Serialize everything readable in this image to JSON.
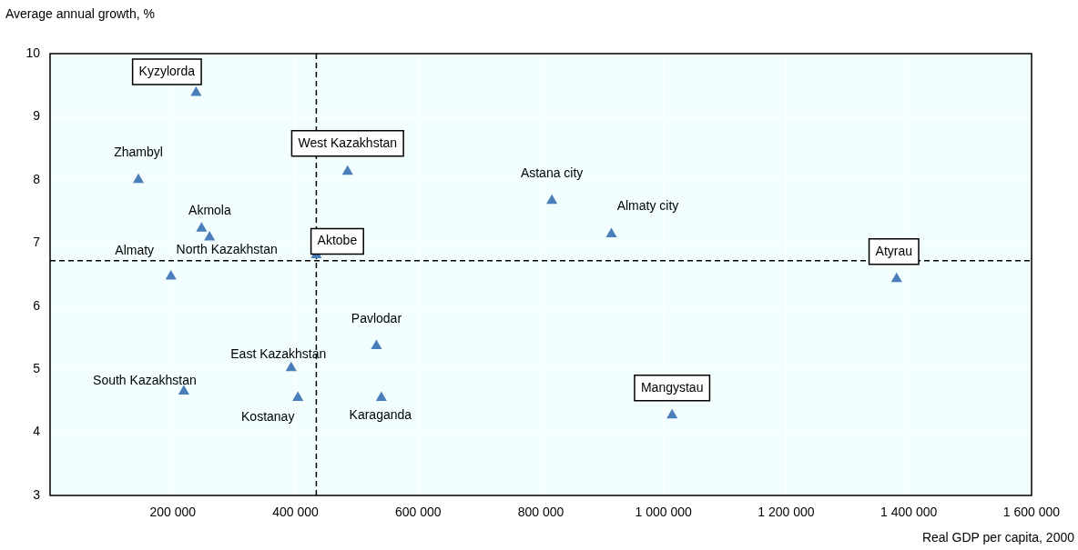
{
  "chart_data": {
    "type": "scatter",
    "xlabel": "Real GDP per capita, 2000",
    "ylabel": "Average annual growth, %",
    "x": [
      238000,
      144000,
      247000,
      260000,
      197000,
      434000,
      485000,
      532000,
      393000,
      218000,
      404000,
      540000,
      818000,
      915000,
      1380000,
      1014000
    ],
    "values": [
      9.38,
      8.0,
      7.23,
      7.09,
      6.47,
      6.81,
      8.13,
      5.37,
      5.02,
      4.65,
      4.55,
      4.55,
      7.67,
      7.14,
      6.43,
      4.27
    ],
    "color": "#4a7ebb",
    "marker": "triangle",
    "xlim": [
      0,
      1600000
    ],
    "xticks": [
      {
        "value": 200000,
        "label": "200 000"
      },
      {
        "value": 400000,
        "label": "400 000"
      },
      {
        "value": 600000,
        "label": "600 000"
      },
      {
        "value": 800000,
        "label": "800 000"
      },
      {
        "value": 1000000,
        "label": "1 000 000"
      },
      {
        "value": 1200000,
        "label": "1 200 000"
      },
      {
        "value": 1400000,
        "label": "1 400 000"
      },
      {
        "value": 1600000,
        "label": "1 600 000"
      }
    ],
    "ylim": [
      3,
      10
    ],
    "yticks": [
      3,
      4,
      5,
      6,
      7,
      8,
      9,
      10
    ],
    "grid": true,
    "ref_lines": [
      {
        "axis": "x",
        "value": 434000,
        "line_style": "dashed",
        "color": "#000000"
      },
      {
        "axis": "y",
        "value": 6.72,
        "line_style": "dashed",
        "color": "#000000"
      }
    ],
    "annotations": [
      {
        "text": "Kyzylorda",
        "x": 238000,
        "y": 9.38
      },
      {
        "text": "Zhambyl",
        "x": 144000,
        "y": 8.0
      },
      {
        "text": "Akmola",
        "x": 247000,
        "y": 7.23
      },
      {
        "text": "North Kazakhstan",
        "x": 260000,
        "y": 7.09
      },
      {
        "text": "Almaty",
        "x": 197000,
        "y": 6.47
      },
      {
        "text": "Aktobe",
        "x": 434000,
        "y": 6.81
      },
      {
        "text": "West Kazakhstan",
        "x": 485000,
        "y": 8.13
      },
      {
        "text": "Pavlodar",
        "x": 532000,
        "y": 5.37
      },
      {
        "text": "East Kazakhstan",
        "x": 393000,
        "y": 5.02
      },
      {
        "text": "South Kazakhstan",
        "x": 218000,
        "y": 4.65
      },
      {
        "text": "Kostanay",
        "x": 404000,
        "y": 4.55
      },
      {
        "text": "Karaganda",
        "x": 540000,
        "y": 4.55
      },
      {
        "text": "Astana city",
        "x": 818000,
        "y": 7.67
      },
      {
        "text": "Almaty city",
        "x": 915000,
        "y": 7.14
      },
      {
        "text": "Atyrau",
        "x": 1380000,
        "y": 6.43
      },
      {
        "text": "Mangystau",
        "x": 1014000,
        "y": 4.27
      }
    ]
  }
}
